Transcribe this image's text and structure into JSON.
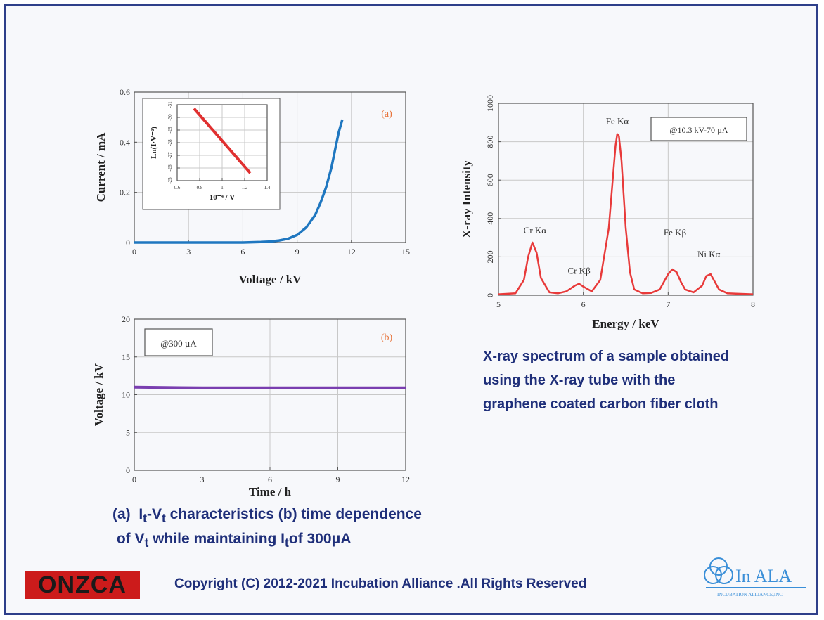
{
  "chart_data": [
    {
      "id": "a",
      "type": "line",
      "panel_label": "(a)",
      "xlabel": "Voltage / kV",
      "ylabel": "Current / mA",
      "xlim": [
        0,
        15
      ],
      "ylim": [
        0,
        0.6
      ],
      "xticks": [
        "0",
        "3",
        "6",
        "9",
        "12",
        "15"
      ],
      "yticks": [
        "0",
        "0.2",
        "0.4",
        "0.6"
      ],
      "grid": true,
      "series": [
        {
          "color": "#1f77c0",
          "x": [
            0,
            2,
            4,
            6,
            7,
            7.5,
            8,
            8.5,
            9,
            9.5,
            10,
            10.3,
            10.6,
            10.9,
            11.1,
            11.3,
            11.5
          ],
          "y": [
            0,
            0,
            0,
            0,
            0.002,
            0.004,
            0.008,
            0.015,
            0.03,
            0.06,
            0.11,
            0.16,
            0.22,
            0.3,
            0.37,
            0.44,
            0.49
          ]
        }
      ],
      "inset": {
        "type": "line",
        "xlabel": "10⁻⁴ / V",
        "ylabel": "Ln(I·V⁻²)",
        "xlim": [
          0.6,
          1.4
        ],
        "ylim": [
          -31,
          -25
        ],
        "xticks": [
          "0.6",
          "0.8",
          "1",
          "1.2",
          "1.4"
        ],
        "yticks": [
          "-25",
          "-26",
          "-27",
          "-28",
          "-29",
          "-30",
          "-31"
        ],
        "series": [
          {
            "color": "#e03030",
            "x": [
              0.75,
              1.25
            ],
            "y": [
              -25.3,
              -30.4
            ]
          }
        ]
      }
    },
    {
      "id": "b",
      "type": "line",
      "panel_label": "(b)",
      "annotation": "@300 µA",
      "xlabel": "Time / h",
      "ylabel": "Voltage / kV",
      "xlim": [
        0,
        12
      ],
      "ylim": [
        0,
        20
      ],
      "xticks": [
        "0",
        "3",
        "6",
        "9",
        "12"
      ],
      "yticks": [
        "0",
        "5",
        "10",
        "15",
        "20"
      ],
      "grid": true,
      "series": [
        {
          "color": "#7a3fb0",
          "x": [
            0,
            3,
            6,
            9,
            12
          ],
          "y": [
            11,
            10.9,
            10.9,
            10.9,
            10.9
          ]
        }
      ]
    },
    {
      "id": "c",
      "type": "line",
      "annotation": "@10.3 kV-70 µA",
      "xlabel": "Energy / keV",
      "ylabel": "X-ray Intensity",
      "xlim": [
        5,
        8
      ],
      "ylim": [
        0,
        1000
      ],
      "xticks": [
        "5",
        "6",
        "7",
        "8"
      ],
      "yticks": [
        "0",
        "200",
        "400",
        "600",
        "800",
        "1000"
      ],
      "grid": true,
      "peak_labels": [
        {
          "text": "Cr Kα",
          "x": 5.43,
          "y": 300
        },
        {
          "text": "Cr Kβ",
          "x": 5.95,
          "y": 90
        },
        {
          "text": "Fe Kα",
          "x": 6.4,
          "y": 870
        },
        {
          "text": "Fe Kβ",
          "x": 7.08,
          "y": 290
        },
        {
          "text": "Ni Kα",
          "x": 7.48,
          "y": 175
        }
      ],
      "series": [
        {
          "color": "#e83a3a",
          "x": [
            5.0,
            5.2,
            5.3,
            5.35,
            5.4,
            5.45,
            5.5,
            5.6,
            5.7,
            5.8,
            5.9,
            5.95,
            6.0,
            6.1,
            6.2,
            6.3,
            6.35,
            6.38,
            6.4,
            6.42,
            6.45,
            6.5,
            6.55,
            6.6,
            6.7,
            6.8,
            6.9,
            7.0,
            7.05,
            7.1,
            7.15,
            7.2,
            7.3,
            7.4,
            7.45,
            7.5,
            7.55,
            7.6,
            7.7,
            7.8,
            8.0
          ],
          "y": [
            5,
            10,
            80,
            200,
            275,
            220,
            90,
            15,
            10,
            20,
            50,
            60,
            45,
            20,
            80,
            350,
            620,
            780,
            840,
            830,
            700,
            350,
            120,
            30,
            10,
            12,
            30,
            110,
            135,
            120,
            70,
            30,
            15,
            50,
            100,
            110,
            70,
            30,
            10,
            8,
            5
          ]
        }
      ]
    }
  ],
  "captions": {
    "right": [
      "X-ray spectrum of a sample obtained",
      "using the X-ray tube with the",
      "graphene coated carbon fiber cloth"
    ]
  },
  "footer": {
    "copyright": "Copyright (C) 2012-2021  Incubation Alliance .All Rights Reserved",
    "left_logo": "ONZCA",
    "right_logo": "In ALA",
    "right_logo_sub": "INCUBATION ALLIANCE,INC"
  }
}
